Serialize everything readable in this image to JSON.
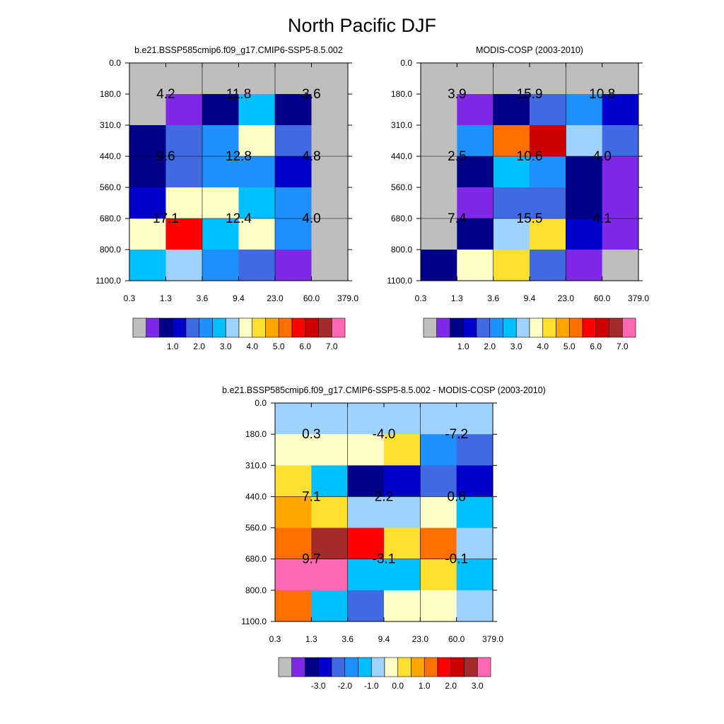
{
  "title": "North Pacific DJF",
  "palette": {
    "gray": "#bebebe",
    "purple": "#8028e8",
    "navy": "#00008b",
    "mediumblue": "#0000cd",
    "royalblue": "#4169e1",
    "dodger": "#1e90ff",
    "deepsky": "#00bfff",
    "lightblue": "#a0d2ff",
    "cream": "#ffffc8",
    "yellow": "#ffe030",
    "orange1": "#ffa500",
    "orange2": "#ff7000",
    "red": "#ff0000",
    "darkred": "#cd0000",
    "brown": "#a52a2a",
    "pink": "#ff69b4"
  },
  "chart_data": [
    {
      "type": "heatmap",
      "title": "b.e21.BSSP585cmip6.f09_g17.CMIP6-SSP5-8.5.002",
      "x_ticks": [
        "0.3",
        "1.3",
        "3.6",
        "9.4",
        "23.0",
        "60.0",
        "379.0"
      ],
      "y_ticks": [
        "0.0",
        "180.0",
        "310.0",
        "440.0",
        "560.0",
        "680.0",
        "800.0",
        "1100.0"
      ],
      "cells": [
        [
          "gray",
          "gray",
          "gray",
          "gray",
          "gray",
          "gray"
        ],
        [
          "gray",
          "purple",
          "navy",
          "deepsky",
          "navy",
          "gray"
        ],
        [
          "navy",
          "royalblue",
          "dodger",
          "cream",
          "royalblue",
          "gray"
        ],
        [
          "navy",
          "royalblue",
          "dodger",
          "dodger",
          "mediumblue",
          "gray"
        ],
        [
          "mediumblue",
          "cream",
          "cream",
          "deepsky",
          "dodger",
          "gray"
        ],
        [
          "cream",
          "red",
          "deepsky",
          "cream",
          "dodger",
          "gray"
        ],
        [
          "deepsky",
          "lightblue",
          "dodger",
          "royalblue",
          "purple",
          "gray"
        ]
      ],
      "annotations": [
        [
          "4.2",
          "11.8",
          "3.6"
        ],
        [
          "9.6",
          "12.8",
          "4.8"
        ],
        [
          "17.1",
          "12.4",
          "4.0"
        ]
      ],
      "colorbar": {
        "colors": [
          "gray",
          "purple",
          "navy",
          "mediumblue",
          "royalblue",
          "dodger",
          "deepsky",
          "lightblue",
          "cream",
          "yellow",
          "orange1",
          "orange2",
          "red",
          "darkred",
          "brown",
          "pink"
        ],
        "labels": [
          "1.0",
          "2.0",
          "3.0",
          "4.0",
          "5.0",
          "6.0",
          "7.0"
        ]
      }
    },
    {
      "type": "heatmap",
      "title": "MODIS-COSP (2003-2010)",
      "x_ticks": [
        "0.3",
        "1.3",
        "3.6",
        "9.4",
        "23.0",
        "60.0",
        "379.0"
      ],
      "y_ticks": [
        "0.0",
        "180.0",
        "310.0",
        "440.0",
        "560.0",
        "680.0",
        "800.0",
        "1100.0"
      ],
      "cells": [
        [
          "gray",
          "gray",
          "gray",
          "gray",
          "gray",
          "gray"
        ],
        [
          "gray",
          "purple",
          "navy",
          "royalblue",
          "dodger",
          "mediumblue"
        ],
        [
          "gray",
          "dodger",
          "orange2",
          "darkred",
          "lightblue",
          "royalblue"
        ],
        [
          "gray",
          "navy",
          "deepsky",
          "dodger",
          "navy",
          "purple"
        ],
        [
          "gray",
          "purple",
          "royalblue",
          "royalblue",
          "navy",
          "purple"
        ],
        [
          "gray",
          "navy",
          "lightblue",
          "yellow",
          "mediumblue",
          "purple"
        ],
        [
          "navy",
          "cream",
          "yellow",
          "royalblue",
          "purple",
          "gray"
        ]
      ],
      "annotations": [
        [
          "3.9",
          "15.9",
          "10.8"
        ],
        [
          "2.5",
          "10.6",
          "4.0"
        ],
        [
          "7.4",
          "15.5",
          "4.1"
        ]
      ],
      "colorbar": {
        "colors": [
          "gray",
          "purple",
          "navy",
          "mediumblue",
          "royalblue",
          "dodger",
          "deepsky",
          "lightblue",
          "cream",
          "yellow",
          "orange1",
          "orange2",
          "red",
          "darkred",
          "brown",
          "pink"
        ],
        "labels": [
          "1.0",
          "2.0",
          "3.0",
          "4.0",
          "5.0",
          "6.0",
          "7.0"
        ]
      }
    },
    {
      "type": "heatmap",
      "title": "b.e21.BSSP585cmip6.f09_g17.CMIP6-SSP5-8.5.002 - MODIS-COSP (2003-2010)",
      "x_ticks": [
        "0.3",
        "1.3",
        "3.6",
        "9.4",
        "23.0",
        "60.0",
        "379.0"
      ],
      "y_ticks": [
        "0.0",
        "180.0",
        "310.0",
        "440.0",
        "560.0",
        "680.0",
        "800.0",
        "1100.0"
      ],
      "cells": [
        [
          "lightblue",
          "lightblue",
          "lightblue",
          "lightblue",
          "lightblue",
          "lightblue"
        ],
        [
          "cream",
          "cream",
          "cream",
          "yellow",
          "dodger",
          "royalblue"
        ],
        [
          "yellow",
          "deepsky",
          "navy",
          "mediumblue",
          "royalblue",
          "mediumblue"
        ],
        [
          "orange1",
          "yellow",
          "lightblue",
          "lightblue",
          "cream",
          "deepsky"
        ],
        [
          "orange2",
          "brown",
          "red",
          "yellow",
          "orange2",
          "lightblue"
        ],
        [
          "pink",
          "pink",
          "deepsky",
          "deepsky",
          "yellow",
          "deepsky"
        ],
        [
          "orange2",
          "deepsky",
          "royalblue",
          "cream",
          "cream",
          "lightblue"
        ]
      ],
      "annotations": [
        [
          "0.3",
          "-4.0",
          "-7.2"
        ],
        [
          "7.1",
          "2.2",
          "0.8"
        ],
        [
          "9.7",
          "-3.1",
          "-0.1"
        ]
      ],
      "colorbar": {
        "colors": [
          "gray",
          "purple",
          "navy",
          "mediumblue",
          "royalblue",
          "dodger",
          "deepsky",
          "lightblue",
          "cream",
          "yellow",
          "orange1",
          "orange2",
          "red",
          "darkred",
          "brown",
          "pink"
        ],
        "labels": [
          "-3.0",
          "-2.0",
          "-1.0",
          "0.0",
          "1.0",
          "2.0",
          "3.0"
        ]
      }
    }
  ]
}
